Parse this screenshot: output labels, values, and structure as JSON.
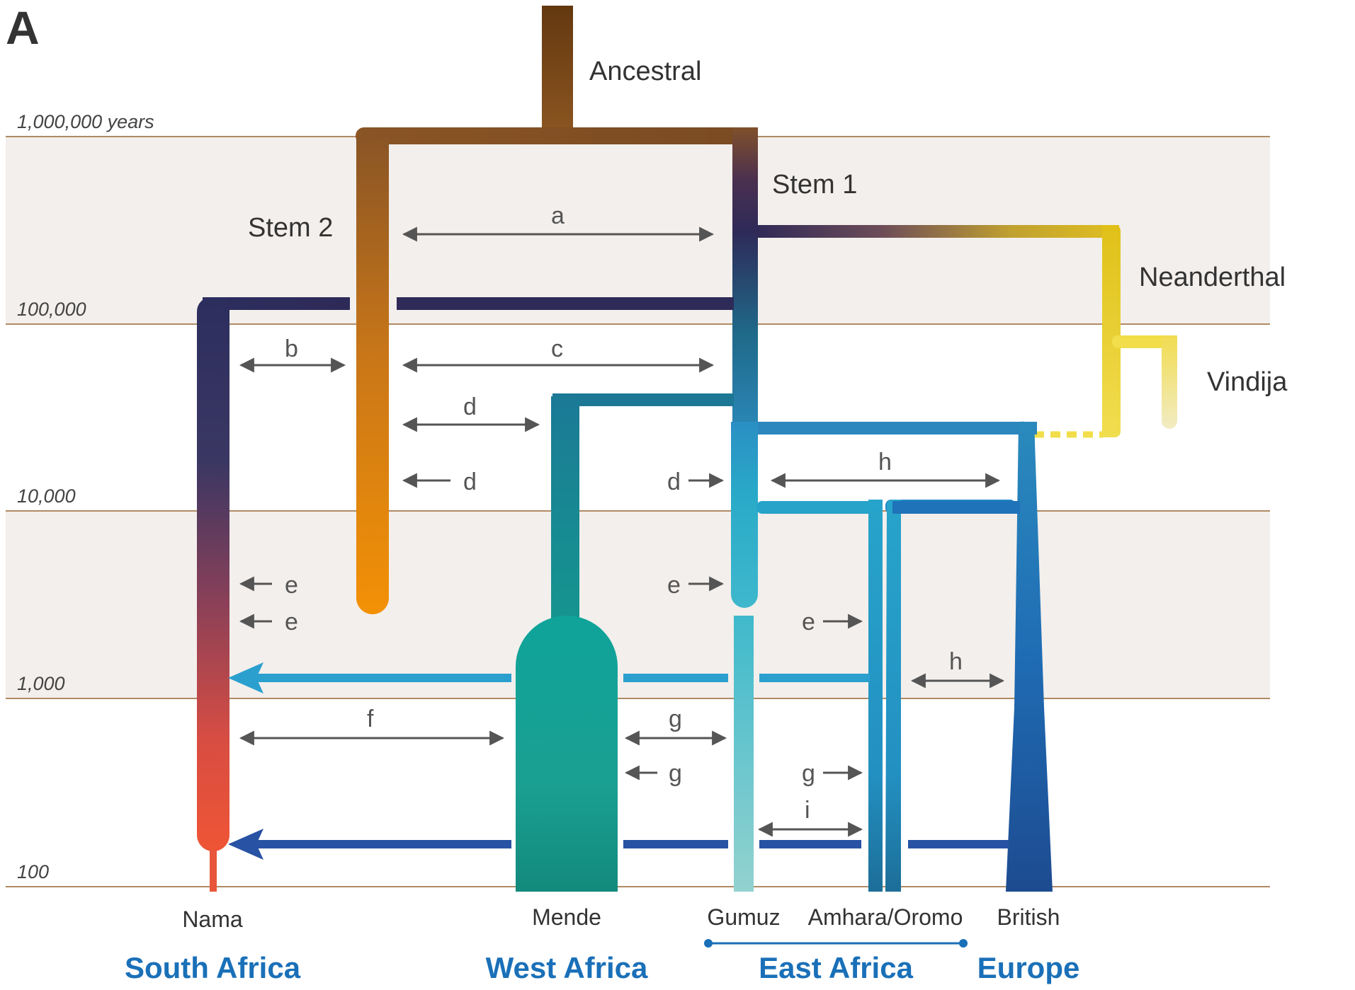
{
  "panel_letter": "A",
  "time_axis": {
    "labels": [
      "1,000,000 years",
      "100,000",
      "10,000",
      "1,000",
      "100"
    ]
  },
  "branch_labels": {
    "ancestral": "Ancestral",
    "stem1": "Stem 1",
    "stem2": "Stem 2",
    "neanderthal": "Neanderthal",
    "vindija": "Vindija"
  },
  "migration_labels": {
    "a": "a",
    "b": "b",
    "c": "c",
    "d1": "d",
    "d2": "d",
    "d3": "d",
    "e1": "e",
    "e2": "e",
    "e3": "e",
    "e4": "e",
    "f": "f",
    "g1": "g",
    "g2": "g",
    "g3": "g",
    "h1": "h",
    "h2": "h",
    "i": "i"
  },
  "populations": {
    "nama": "Nama",
    "mende": "Mende",
    "gumuz": "Gumuz",
    "amhara_oromo": "Amhara/Oromo",
    "british": "British"
  },
  "regions": {
    "south_africa": "South Africa",
    "west_africa": "West Africa",
    "east_africa": "East Africa",
    "europe": "Europe"
  },
  "colors": {
    "band_fill": "#f3efec",
    "axis_line": "#b08a65",
    "ancestral": "#6e3f12",
    "stem2_bottom": "#f0900a",
    "stem1": "#2e2a58",
    "neanderthal": "#e0c020",
    "vindija": "#f1ecc0",
    "nama_bottom": "#e8553a",
    "mende": "#179a8c",
    "gumuz": "#2aa8c8",
    "amhara_oromo": "#2590c5",
    "british": "#1d4f99",
    "migration_light": "#2ba0cf",
    "migration_dark": "#2852a3",
    "region_text": "#1a70b8"
  }
}
